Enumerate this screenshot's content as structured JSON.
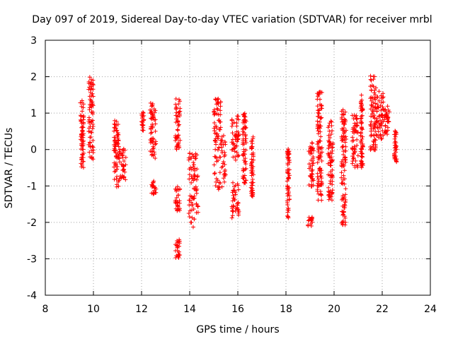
{
  "chart_data": {
    "type": "scatter",
    "title": "Day 097 of 2019, Sidereal Day-to-day VTEC variation (SDTVAR) for receiver mrbl",
    "xlabel": "GPS time / hours",
    "ylabel": "SDTVAR / TECUs",
    "xlim": [
      8,
      24
    ],
    "ylim": [
      -4,
      3
    ],
    "xticks": [
      8,
      10,
      12,
      14,
      16,
      18,
      20,
      22,
      24
    ],
    "yticks": [
      -4,
      -3,
      -2,
      -1,
      0,
      1,
      2,
      3
    ],
    "grid": true,
    "marker": "+",
    "color": "#ff0000",
    "clusters": [
      {
        "x": [
          9.45,
          9.6
        ],
        "y": [
          -0.5,
          1.35
        ]
      },
      {
        "x": [
          9.8,
          10.0
        ],
        "y": [
          -0.3,
          2.0
        ]
      },
      {
        "x": [
          10.85,
          11.05
        ],
        "y": [
          -1.05,
          0.9
        ]
      },
      {
        "x": [
          11.05,
          11.35
        ],
        "y": [
          -0.85,
          0.05
        ]
      },
      {
        "x": [
          12.0,
          12.1
        ],
        "y": [
          0.5,
          1.05
        ]
      },
      {
        "x": [
          12.35,
          12.6
        ],
        "y": [
          -0.25,
          1.3
        ]
      },
      {
        "x": [
          12.4,
          12.6
        ],
        "y": [
          -1.25,
          -0.85
        ]
      },
      {
        "x": [
          13.4,
          13.6
        ],
        "y": [
          0.0,
          1.4
        ]
      },
      {
        "x": [
          13.4,
          13.6
        ],
        "y": [
          -1.7,
          -1.0
        ]
      },
      {
        "x": [
          13.4,
          13.6
        ],
        "y": [
          -3.0,
          -2.45
        ]
      },
      {
        "x": [
          13.95,
          14.35
        ],
        "y": [
          -2.15,
          -0.1
        ]
      },
      {
        "x": [
          15.0,
          15.3
        ],
        "y": [
          0.5,
          1.4
        ]
      },
      {
        "x": [
          15.0,
          15.5
        ],
        "y": [
          -1.1,
          0.5
        ]
      },
      {
        "x": [
          15.75,
          16.05
        ],
        "y": [
          -0.3,
          0.95
        ]
      },
      {
        "x": [
          15.75,
          16.05
        ],
        "y": [
          -1.9,
          -0.9
        ]
      },
      {
        "x": [
          16.2,
          16.35
        ],
        "y": [
          -1.0,
          1.0
        ]
      },
      {
        "x": [
          16.55,
          16.65
        ],
        "y": [
          -1.3,
          0.35
        ]
      },
      {
        "x": [
          18.05,
          18.15
        ],
        "y": [
          -1.9,
          0.05
        ]
      },
      {
        "x": [
          18.9,
          19.1
        ],
        "y": [
          -2.1,
          -1.85
        ]
      },
      {
        "x": [
          18.95,
          19.15
        ],
        "y": [
          -1.05,
          0.2
        ]
      },
      {
        "x": [
          19.3,
          19.5
        ],
        "y": [
          -1.45,
          1.65
        ]
      },
      {
        "x": [
          19.75,
          19.95
        ],
        "y": [
          -1.4,
          0.8
        ]
      },
      {
        "x": [
          20.3,
          20.5
        ],
        "y": [
          -2.1,
          1.1
        ]
      },
      {
        "x": [
          20.75,
          21.0
        ],
        "y": [
          -0.5,
          0.95
        ]
      },
      {
        "x": [
          21.1,
          21.2
        ],
        "y": [
          -0.5,
          1.5
        ]
      },
      {
        "x": [
          21.5,
          21.75
        ],
        "y": [
          -0.05,
          2.1
        ]
      },
      {
        "x": [
          21.75,
          22.05
        ],
        "y": [
          0.2,
          1.6
        ]
      },
      {
        "x": [
          22.05,
          22.3
        ],
        "y": [
          0.3,
          1.2
        ]
      },
      {
        "x": [
          22.5,
          22.6
        ],
        "y": [
          -0.4,
          0.55
        ]
      }
    ]
  }
}
